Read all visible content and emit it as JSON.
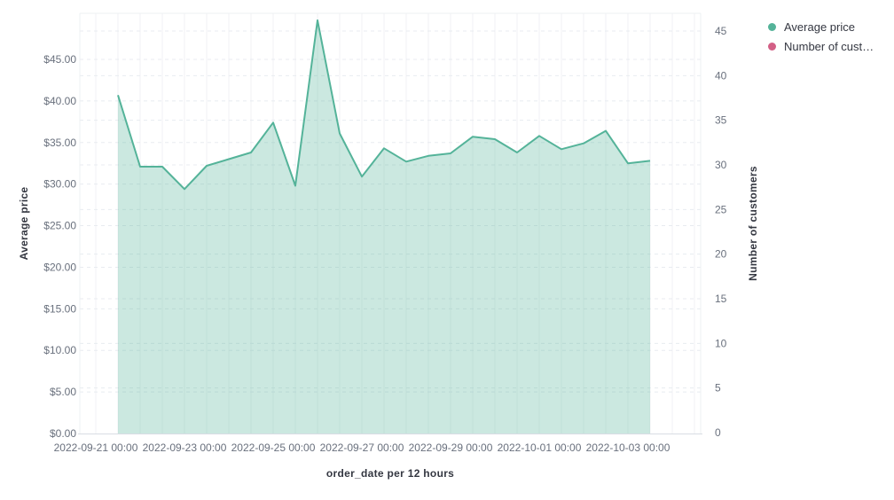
{
  "chart_data": {
    "type": "area",
    "title": "",
    "xlabel": "order_date per 12 hours",
    "x_tick_labels": [
      "2022-09-21 00:00",
      "2022-09-23 00:00",
      "2022-09-25 00:00",
      "2022-09-27 00:00",
      "2022-09-29 00:00",
      "2022-10-01 00:00",
      "2022-10-03 00:00"
    ],
    "y_left": {
      "label": "Average price",
      "tick_labels": [
        "$0.00",
        "$5.00",
        "$10.00",
        "$15.00",
        "$20.00",
        "$25.00",
        "$30.00",
        "$35.00",
        "$40.00",
        "$45.00"
      ],
      "tick_values": [
        0,
        5,
        10,
        15,
        20,
        25,
        30,
        35,
        40,
        45
      ],
      "ylim": [
        0,
        50.5
      ],
      "grid": true
    },
    "y_right": {
      "label": "Number of customers",
      "tick_labels": [
        "0",
        "5",
        "10",
        "15",
        "20",
        "25",
        "30",
        "35",
        "40",
        "45"
      ],
      "tick_values": [
        0,
        5,
        10,
        15,
        20,
        25,
        30,
        35,
        40,
        45
      ],
      "ylim": [
        0,
        50.5
      ],
      "grid": true
    },
    "legend_position": "top-right",
    "series": [
      {
        "name": "Average price",
        "axis": "left",
        "color": "#54b399",
        "fill_opacity": 0.3,
        "x": [
          "2022-09-21 12:00",
          "2022-09-22 00:00",
          "2022-09-22 12:00",
          "2022-09-23 00:00",
          "2022-09-23 12:00",
          "2022-09-24 00:00",
          "2022-09-24 12:00",
          "2022-09-25 00:00",
          "2022-09-25 12:00",
          "2022-09-26 00:00",
          "2022-09-26 12:00",
          "2022-09-27 00:00",
          "2022-09-27 12:00",
          "2022-09-28 00:00",
          "2022-09-28 12:00",
          "2022-09-29 00:00",
          "2022-09-29 12:00",
          "2022-09-30 00:00",
          "2022-09-30 12:00",
          "2022-10-01 00:00",
          "2022-10-01 12:00",
          "2022-10-02 00:00",
          "2022-10-02 12:00",
          "2022-10-03 00:00",
          "2022-10-03 12:00"
        ],
        "values": [
          40.7,
          32.1,
          32.1,
          29.4,
          32.2,
          33.0,
          33.8,
          37.4,
          29.8,
          49.7,
          36.1,
          30.9,
          34.3,
          32.7,
          33.4,
          33.7,
          35.7,
          35.4,
          33.8,
          35.8,
          34.2,
          34.9,
          36.4,
          32.5,
          32.8
        ]
      },
      {
        "name": "Number of cust…",
        "axis": "right",
        "color": "#d36086",
        "values": []
      }
    ]
  },
  "axes": {
    "left_title": "Average price",
    "right_title": "Number of customers",
    "x_title": "order_date per 12 hours"
  },
  "legend": {
    "items": [
      {
        "label": "Average price",
        "color": "#54b399"
      },
      {
        "label": "Number of cust…",
        "color": "#d36086"
      }
    ]
  },
  "colors": {
    "line": "#54b399",
    "area_fill": "rgba(84,179,153,0.3)",
    "tick_text": "#69707d",
    "title_text": "#343741",
    "grid_vertical": "#f0f2f5",
    "grid_horizontal": "#e8ebf0",
    "plot_border": "#eef0f3",
    "axis_line": "#d9dde3"
  }
}
